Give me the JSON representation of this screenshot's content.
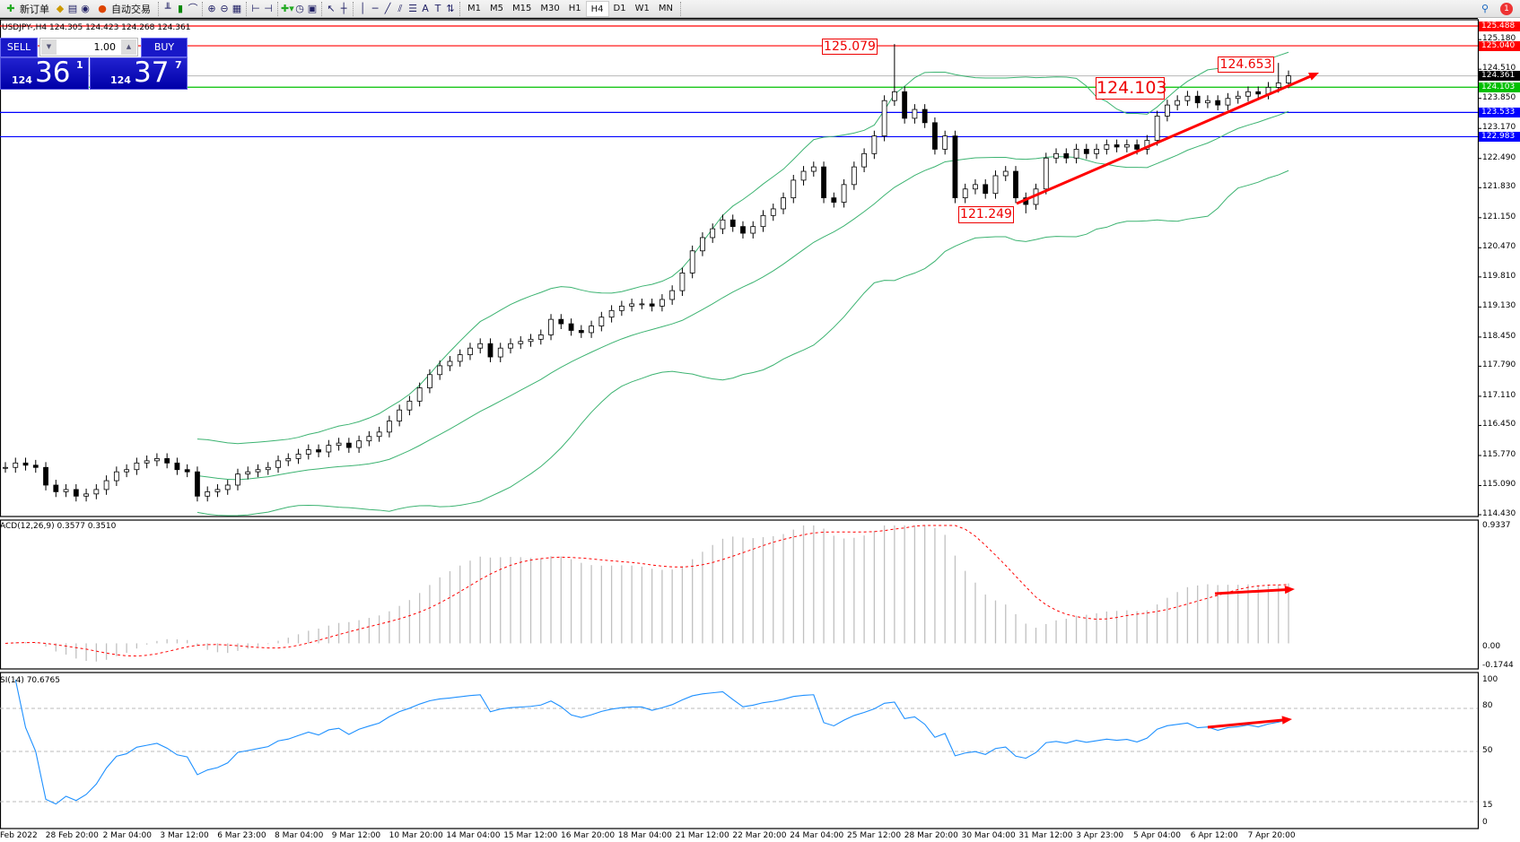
{
  "toolbar": {
    "new_order": "新订单",
    "auto_trading": "自动交易",
    "timeframes": [
      "M1",
      "M5",
      "M15",
      "M30",
      "H1",
      "H4",
      "D1",
      "W1",
      "MN"
    ],
    "active_timeframe": "H4",
    "notification_count": "1",
    "icons": [
      "new-order-icon",
      "market-watch-icon",
      "data-window-icon",
      "navigator-icon",
      "signals-icon",
      "auto-trading-icon",
      "bar-chart-icon",
      "candlestick-icon",
      "line-chart-icon",
      "zoom-in-icon",
      "zoom-out-icon",
      "tile-windows-icon",
      "chart-shift-icon",
      "auto-scroll-icon",
      "indicators-icon",
      "periods-icon",
      "templates-icon",
      "cursor-icon",
      "crosshair-icon",
      "vertical-line-icon",
      "horizontal-line-icon",
      "trendline-icon",
      "equidistant-channel-icon",
      "fibonacci-icon",
      "text-icon",
      "text-label-icon",
      "arrows-icon",
      "search-icon",
      "alert-icon"
    ]
  },
  "chart": {
    "symbol_line": "USDJPY-,H4  124.305 124.423 124.268 124.361",
    "colors": {
      "bull": "#ffffff",
      "bear": "#000000",
      "bands": "#3cb371",
      "red": "#ff0000",
      "blue": "#0000ff",
      "green": "#00c000",
      "rsi": "#1e90ff",
      "macd_hist": "#c0c0c0"
    },
    "price_axis": [
      "125.180",
      "124.510",
      "123.850",
      "123.170",
      "122.490",
      "121.830",
      "121.150",
      "120.470",
      "119.810",
      "119.130",
      "118.450",
      "117.790",
      "117.110",
      "116.450",
      "115.770",
      "115.090",
      "114.430"
    ],
    "price_range": [
      114.43,
      125.488
    ],
    "levels": [
      {
        "price": "125.488",
        "color": "#ff0000"
      },
      {
        "price": "125.040",
        "color": "#ff0000"
      },
      {
        "price": "124.361",
        "color": "#000000",
        "line_color": "#c0c0c0"
      },
      {
        "price": "124.103",
        "color": "#00c000"
      },
      {
        "price": "123.533",
        "color": "#0000ff"
      },
      {
        "price": "122.983",
        "color": "#0000ff"
      }
    ],
    "annotations": {
      "high": "125.079",
      "level": "124.103",
      "recent_high": "124.653",
      "low": "121.249"
    },
    "closes": [
      115.5,
      115.6,
      115.55,
      115.5,
      115.1,
      114.95,
      115.0,
      114.85,
      114.9,
      115.0,
      115.2,
      115.4,
      115.45,
      115.6,
      115.65,
      115.7,
      115.6,
      115.45,
      115.4,
      114.85,
      114.95,
      115.0,
      115.1,
      115.35,
      115.4,
      115.45,
      115.5,
      115.65,
      115.7,
      115.8,
      115.9,
      115.85,
      116.0,
      116.05,
      115.95,
      116.1,
      116.2,
      116.3,
      116.55,
      116.8,
      117.0,
      117.3,
      117.6,
      117.8,
      117.9,
      118.05,
      118.2,
      118.3,
      118.0,
      118.2,
      118.3,
      118.35,
      118.4,
      118.5,
      118.85,
      118.75,
      118.6,
      118.55,
      118.7,
      118.9,
      119.05,
      119.15,
      119.2,
      119.2,
      119.15,
      119.3,
      119.5,
      119.9,
      120.4,
      120.7,
      120.9,
      121.1,
      120.95,
      120.8,
      120.95,
      121.2,
      121.35,
      121.6,
      122.0,
      122.2,
      122.3,
      121.6,
      121.5,
      121.9,
      122.3,
      122.6,
      123.0,
      123.8,
      124.0,
      123.4,
      123.6,
      123.3,
      122.7,
      123.0,
      121.6,
      121.8,
      121.9,
      121.7,
      122.1,
      122.2,
      121.6,
      121.45,
      121.8,
      122.5,
      122.6,
      122.5,
      122.7,
      122.6,
      122.7,
      122.8,
      122.75,
      122.8,
      122.7,
      122.9,
      123.45,
      123.7,
      123.8,
      123.9,
      123.75,
      123.8,
      123.7,
      123.85,
      123.9,
      124.0,
      123.95,
      124.1,
      124.2,
      124.361
    ]
  },
  "trade_panel": {
    "sell": "SELL",
    "buy": "BUY",
    "lot": "1.00",
    "bid_big": "124",
    "bid_main": "36",
    "bid_pip": "1",
    "ask_big": "124",
    "ask_main": "37",
    "ask_pip": "7"
  },
  "macd": {
    "label": "ACD(12,26,9) 0.3577 0.3510",
    "axis": [
      "0.9337",
      "0.00",
      "-0.1744"
    ],
    "range": [
      -0.1744,
      0.9337
    ]
  },
  "rsi": {
    "label": "SI(14) 70.6765",
    "axis": [
      "100",
      "80",
      "50",
      "15",
      "0"
    ]
  },
  "time_axis": [
    "Feb 2022",
    "28 Feb 20:00",
    "2 Mar 04:00",
    "3 Mar 12:00",
    "6 Mar 23:00",
    "8 Mar 04:00",
    "9 Mar 12:00",
    "10 Mar 20:00",
    "14 Mar 04:00",
    "15 Mar 12:00",
    "16 Mar 20:00",
    "18 Mar 04:00",
    "21 Mar 12:00",
    "22 Mar 20:00",
    "24 Mar 04:00",
    "25 Mar 12:00",
    "28 Mar 20:00",
    "30 Mar 04:00",
    "31 Mar 12:00",
    "3 Apr 23:00",
    "5 Apr 04:00",
    "6 Apr 12:00",
    "7 Apr 20:00"
  ]
}
